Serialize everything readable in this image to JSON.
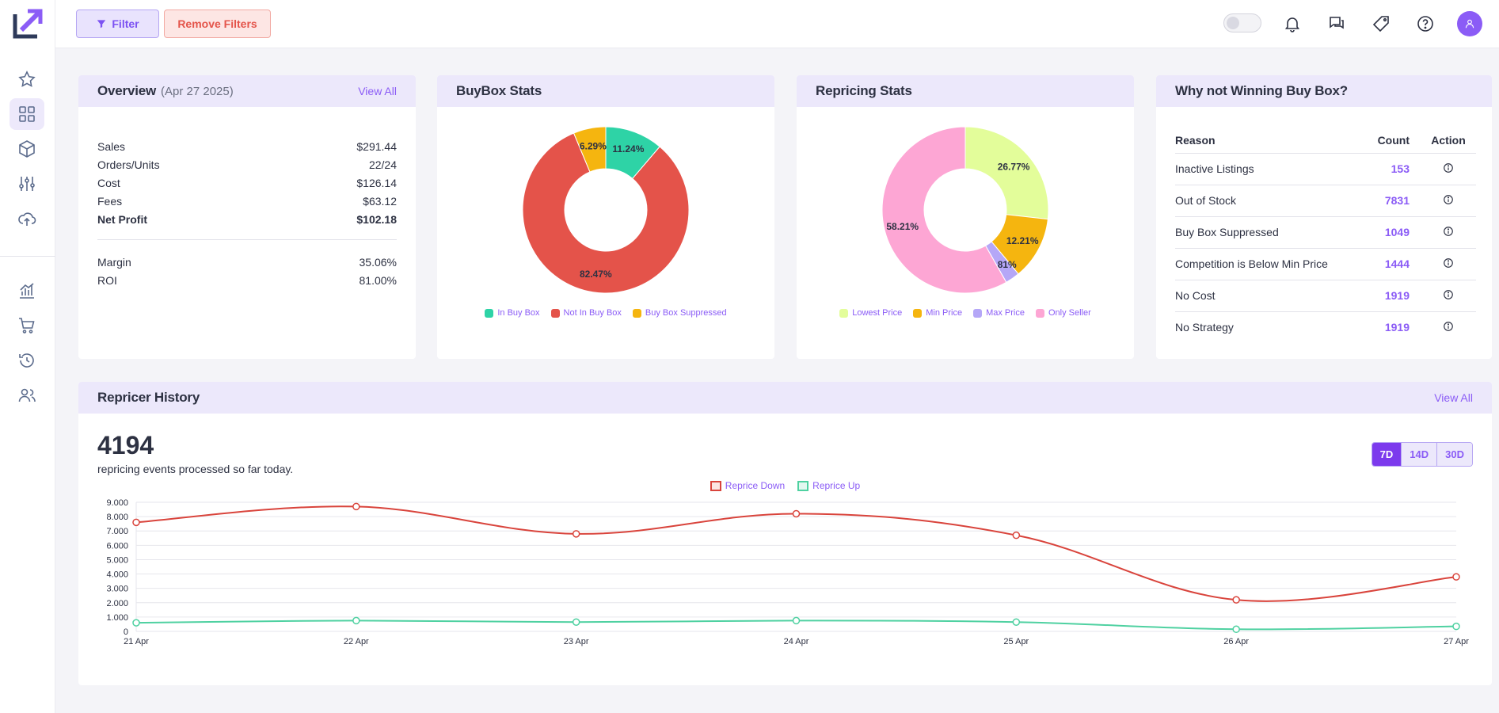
{
  "topbar": {
    "filter_label": "Filter",
    "remove_filters_label": "Remove Filters",
    "icons": [
      "bell-icon",
      "chat-icon",
      "tag-icon",
      "help-icon",
      "user-icon"
    ]
  },
  "sidebar": {
    "items": [
      "star-icon",
      "dashboard-icon",
      "box-icon",
      "sliders-icon",
      "cloud-upload-icon",
      "chart-icon",
      "cart-icon",
      "history-icon",
      "users-icon"
    ],
    "active": "dashboard-icon"
  },
  "overview": {
    "title": "Overview",
    "date": "(Apr 27 2025)",
    "view_all": "View All",
    "rows": [
      {
        "label": "Sales",
        "value": "$291.44"
      },
      {
        "label": "Orders/Units",
        "value": "22/24"
      },
      {
        "label": "Cost",
        "value": "$126.14"
      },
      {
        "label": "Fees",
        "value": "$63.12"
      },
      {
        "label": "Net Profit",
        "value": "$102.18"
      }
    ],
    "rows2": [
      {
        "label": "Margin",
        "value": "35.06%"
      },
      {
        "label": "ROI",
        "value": "81.00%"
      }
    ]
  },
  "buybox": {
    "title": "BuyBox Stats",
    "slices": [
      {
        "label": "In Buy Box",
        "pct": 11.24,
        "text": "11.24%",
        "color": "#2ed3a6"
      },
      {
        "label": "Not In Buy Box",
        "pct": 82.47,
        "text": "82.47%",
        "color": "#e4534a"
      },
      {
        "label": "Buy Box Suppressed",
        "pct": 6.29,
        "text": "6.29%",
        "color": "#f5b50f"
      }
    ]
  },
  "repricing": {
    "title": "Repricing Stats",
    "slices": [
      {
        "label": "Lowest Price",
        "pct": 26.77,
        "text": "26.77%",
        "color": "#e3fd9a"
      },
      {
        "label": "Min Price",
        "pct": 12.21,
        "text": "12.21%",
        "color": "#f5b50f"
      },
      {
        "label": "Max Price",
        "pct": 2.81,
        "text": "2.81%",
        "color": "#b5a7f7"
      },
      {
        "label": "Only Seller",
        "pct": 58.21,
        "text": "58.21%",
        "color": "#fda6d4"
      }
    ]
  },
  "why": {
    "title": "Why not Winning Buy Box?",
    "headers": {
      "reason": "Reason",
      "count": "Count",
      "action": "Action"
    },
    "rows": [
      {
        "reason": "Inactive Listings",
        "count": "153"
      },
      {
        "reason": "Out of Stock",
        "count": "7831"
      },
      {
        "reason": "Buy Box Suppressed",
        "count": "1049"
      },
      {
        "reason": "Competition is Below Min Price",
        "count": "1444"
      },
      {
        "reason": "No Cost",
        "count": "1919"
      },
      {
        "reason": "No Strategy",
        "count": "1919"
      }
    ]
  },
  "history": {
    "title": "Repricer History",
    "view_all": "View All",
    "total": "4194",
    "subtitle": "repricing events processed so far today.",
    "ranges": [
      "7D",
      "14D",
      "30D"
    ],
    "active_range": "7D"
  },
  "chart_data": {
    "type": "line",
    "categories": [
      "21 Apr",
      "22 Apr",
      "23 Apr",
      "24 Apr",
      "25 Apr",
      "26 Apr",
      "27 Apr"
    ],
    "series": [
      {
        "name": "Reprice Down",
        "color": "#d9443c",
        "values": [
          7600,
          8700,
          6800,
          8200,
          6700,
          2200,
          3800
        ]
      },
      {
        "name": "Reprice Up",
        "color": "#4fd1a1",
        "values": [
          600,
          750,
          650,
          750,
          650,
          150,
          350
        ]
      }
    ],
    "yticks": [
      "0",
      "1.000",
      "2.000",
      "3.000",
      "4.000",
      "5.000",
      "6.000",
      "7.000",
      "8.000",
      "9.000"
    ],
    "ylim": [
      0,
      9000
    ],
    "grid": true,
    "legend": "top-center"
  }
}
